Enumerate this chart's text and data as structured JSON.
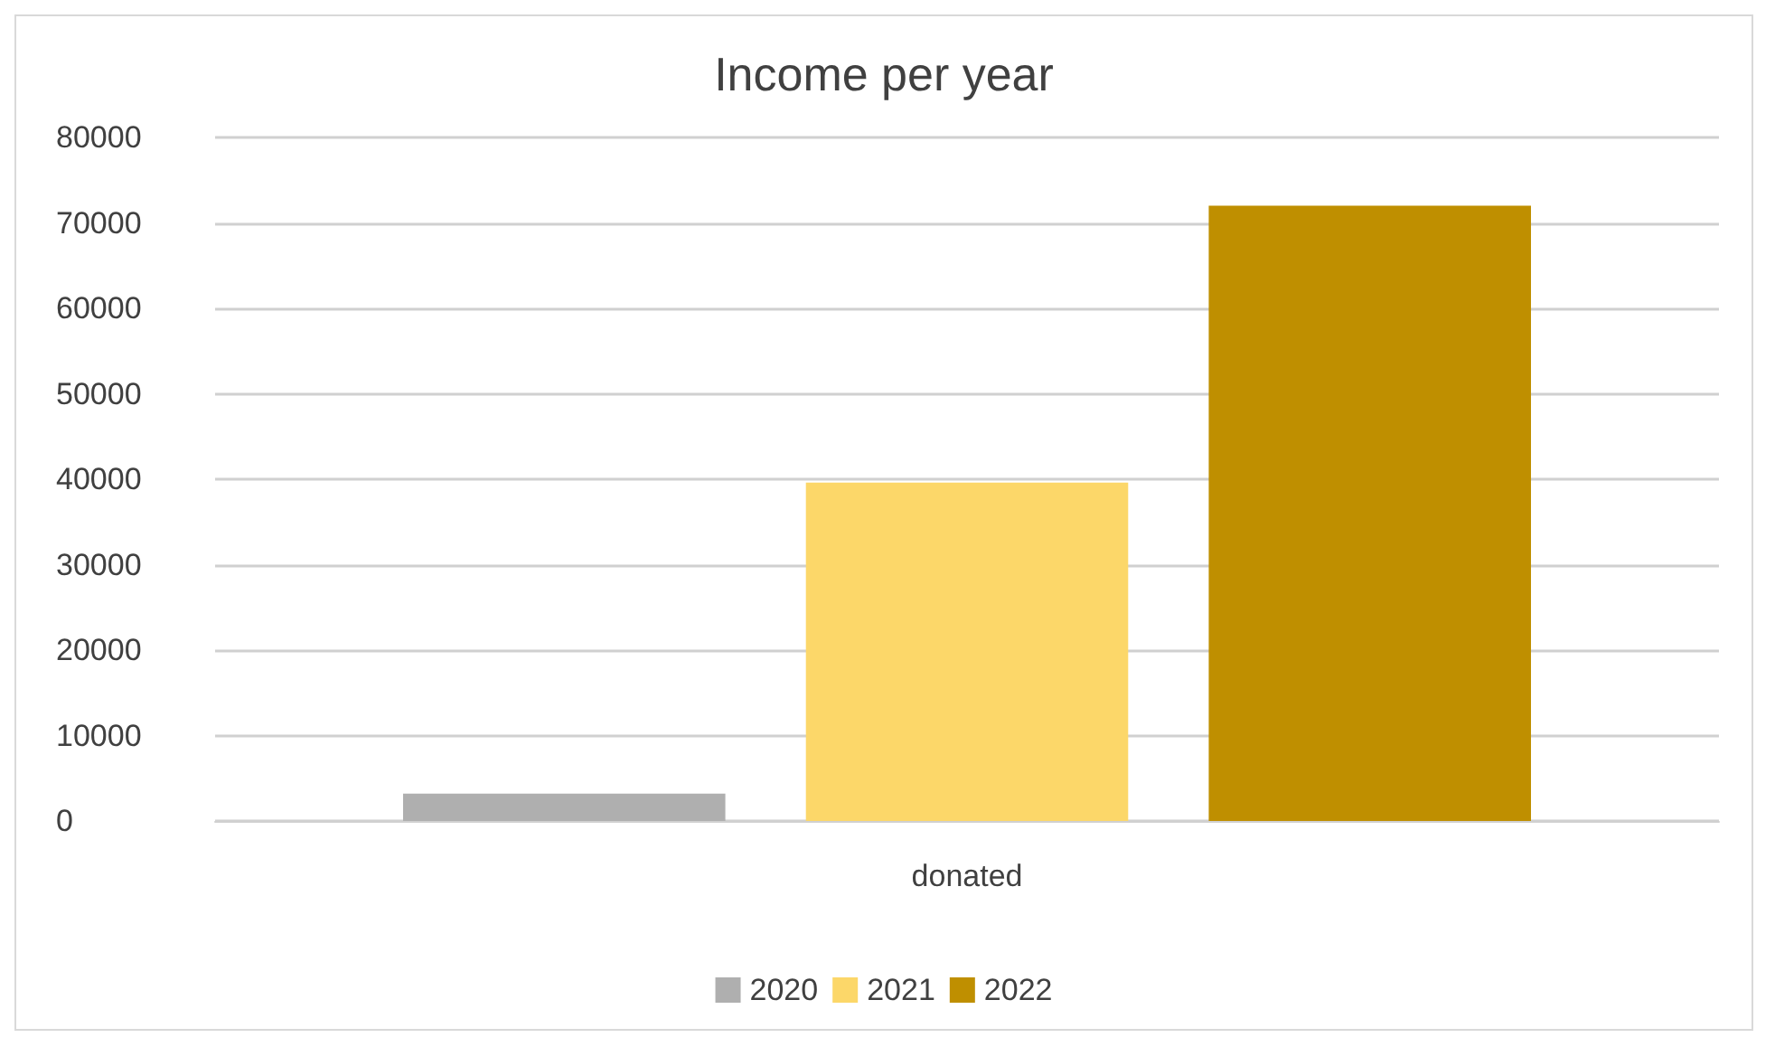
{
  "chart_data": {
    "type": "bar",
    "title": "Income per year",
    "categories": [
      "donated"
    ],
    "series": [
      {
        "name": "2020",
        "color": "#afafaf",
        "values": [
          3200
        ]
      },
      {
        "name": "2021",
        "color": "#fcd769",
        "values": [
          39600
        ]
      },
      {
        "name": "2022",
        "color": "#bf8f00",
        "values": [
          72000
        ]
      }
    ],
    "ylim": [
      0,
      80000
    ],
    "yticks": [
      0,
      10000,
      20000,
      30000,
      40000,
      50000,
      60000,
      70000,
      80000
    ],
    "grid": "y",
    "legend": "bottom"
  }
}
